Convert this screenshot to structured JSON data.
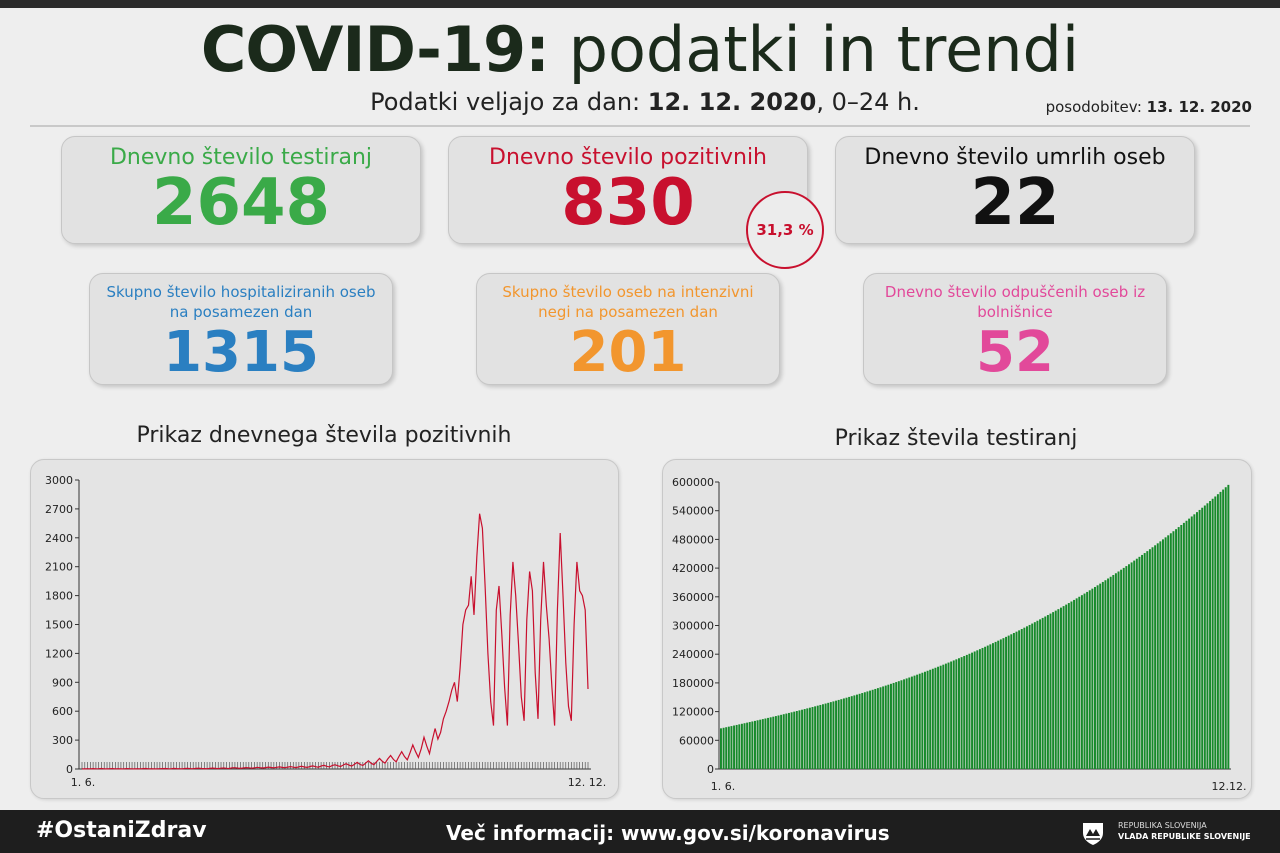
{
  "header": {
    "title_bold": "COVID-19:",
    "title_rest": " podatki in trendi",
    "subtitle_prefix": "Podatki veljajo za dan: ",
    "subtitle_date": "12. 12. 2020",
    "subtitle_suffix": ", 0–24 h.",
    "updated_label": "posodobitev: ",
    "updated_date": "13. 12. 2020"
  },
  "stats": {
    "tests": {
      "label": "Dnevno število testiranj",
      "value": "2648",
      "color": "#3aaa48"
    },
    "positive": {
      "label": "Dnevno število pozitivnih",
      "value": "830",
      "color": "#c8102e"
    },
    "positive_ratio": "31,3 %",
    "deaths": {
      "label": "Dnevno število umrlih oseb",
      "value": "22",
      "color": "#111111"
    },
    "hospitalized": {
      "label": "Skupno število hospitaliziranih oseb na posamezen dan",
      "value": "1315",
      "color": "#2a7fc1"
    },
    "icu": {
      "label": "Skupno število oseb na intenzivni negi na posamezen dan",
      "value": "201",
      "color": "#f2962e"
    },
    "discharged": {
      "label": "Dnevno število odpuščenih oseb iz bolnišnice",
      "value": "52",
      "color": "#e2499a"
    }
  },
  "chart_data": [
    {
      "type": "line",
      "title": "Prikaz dnevnega števila pozitivnih",
      "x_start_label": "1. 6.",
      "x_end_label": "12. 12.",
      "yticks": [
        0,
        300,
        600,
        900,
        1200,
        1500,
        1800,
        2100,
        2400,
        2700,
        3000
      ],
      "ylim": [
        0,
        3000
      ],
      "color": "#c8102e",
      "values": [
        2,
        1,
        3,
        2,
        4,
        2,
        3,
        5,
        2,
        1,
        3,
        4,
        2,
        3,
        1,
        2,
        4,
        3,
        2,
        1,
        3,
        2,
        4,
        5,
        2,
        3,
        1,
        2,
        3,
        4,
        5,
        3,
        2,
        6,
        4,
        3,
        2,
        5,
        7,
        4,
        3,
        6,
        8,
        5,
        4,
        3,
        7,
        9,
        6,
        4,
        8,
        10,
        7,
        5,
        12,
        14,
        9,
        6,
        10,
        15,
        12,
        8,
        11,
        18,
        14,
        10,
        15,
        20,
        16,
        12,
        18,
        22,
        17,
        13,
        20,
        25,
        19,
        15,
        23,
        28,
        21,
        17,
        26,
        32,
        24,
        19,
        30,
        38,
        28,
        22,
        35,
        45,
        33,
        26,
        42,
        55,
        40,
        30,
        50,
        68,
        48,
        36,
        60,
        85,
        60,
        45,
        78,
        110,
        80,
        60,
        105,
        140,
        100,
        75,
        130,
        180,
        130,
        95,
        170,
        250,
        180,
        120,
        210,
        330,
        240,
        160,
        300,
        420,
        310,
        380,
        520,
        600,
        700,
        820,
        900,
        700,
        1050,
        1500,
        1650,
        1700,
        2000,
        1600,
        2200,
        2650,
        2500,
        1900,
        1200,
        700,
        450,
        1650,
        1900,
        1400,
        850,
        450,
        1600,
        2150,
        1800,
        1300,
        750,
        500,
        1550,
        2050,
        1850,
        1000,
        520,
        1550,
        2150,
        1700,
        1350,
        850,
        450,
        1650,
        2450,
        1800,
        1100,
        650,
        500,
        1500,
        2150,
        1850,
        1800,
        1650,
        830
      ]
    },
    {
      "type": "bar",
      "title": "Prikaz števila testiranj",
      "x_start_label": "1. 6.",
      "x_end_label": "12.12.",
      "yticks": [
        0,
        60000,
        120000,
        180000,
        240000,
        300000,
        360000,
        420000,
        480000,
        540000,
        600000
      ],
      "ylim": [
        0,
        600000
      ],
      "color": "#178a2b",
      "start_value": 85000,
      "end_value": 594000
    }
  ],
  "footer": {
    "hashtag": "#OstaniZdrav",
    "info": "Več informacij: www.gov.si/koronavirus",
    "gov_line1": "REPUBLIKA SLOVENIJA",
    "gov_line2": "VLADA REPUBLIKE SLOVENIJE"
  }
}
